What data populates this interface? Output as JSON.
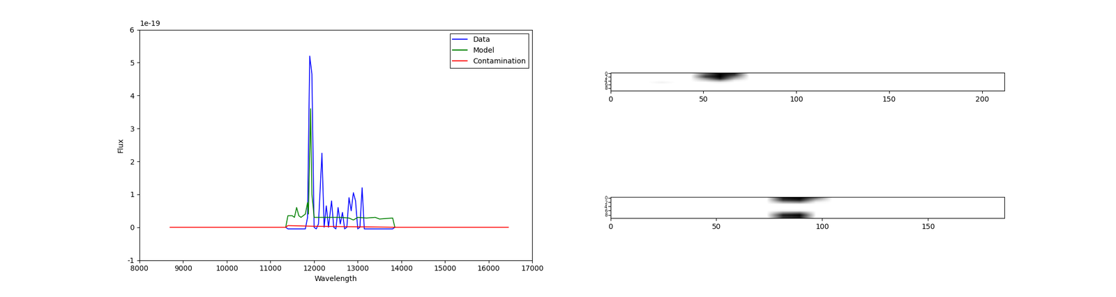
{
  "chart_data": [
    {
      "type": "line",
      "x_label": "Wavelength",
      "y_label": "Flux",
      "annotations": [
        {
          "text": "1e-19"
        }
      ],
      "xlim": [
        8000,
        17000
      ],
      "xticks": [
        8000,
        9000,
        10000,
        11000,
        12000,
        13000,
        14000,
        15000,
        16000,
        17000
      ],
      "ylim": [
        -1,
        6
      ],
      "yticks": [
        -1,
        0,
        1,
        2,
        3,
        4,
        5,
        6
      ],
      "legend": "upper right",
      "series": [
        {
          "name": "Data",
          "color": "#0000ff",
          "x": [
            11350,
            11400,
            11500,
            11600,
            11700,
            11800,
            11850,
            11900,
            11950,
            12000,
            12050,
            12100,
            12180,
            12230,
            12280,
            12330,
            12400,
            12450,
            12500,
            12550,
            12600,
            12650,
            12700,
            12750,
            12800,
            12850,
            12900,
            12950,
            13000,
            13050,
            13100,
            13150,
            13200,
            13400,
            13600,
            13800,
            13850
          ],
          "values": [
            0,
            -0.05,
            -0.05,
            -0.05,
            -0.05,
            -0.05,
            0.3,
            5.2,
            4.65,
            0,
            -0.05,
            0.1,
            2.25,
            0,
            0.65,
            0,
            0.8,
            0,
            -0.05,
            0.6,
            0.1,
            0.45,
            -0.05,
            0,
            0.9,
            0.5,
            1.05,
            0.8,
            -0.05,
            0,
            1.2,
            -0.05,
            -0.05,
            -0.05,
            -0.05,
            -0.05,
            0
          ]
        },
        {
          "name": "Model",
          "color": "#008000",
          "x": [
            11350,
            11400,
            11500,
            11550,
            11600,
            11650,
            11700,
            11800,
            11850,
            11870,
            11920,
            11950,
            11980,
            12000,
            12200,
            12400,
            12600,
            12800,
            12900,
            13000,
            13200,
            13400,
            13500,
            13600,
            13800,
            13850
          ],
          "values": [
            0,
            0.35,
            0.35,
            0.3,
            0.6,
            0.35,
            0.3,
            0.4,
            0.75,
            0.4,
            3.6,
            1.0,
            0.6,
            0.3,
            0.3,
            0.3,
            0.3,
            0.28,
            0.22,
            0.3,
            0.28,
            0.3,
            0.25,
            0.26,
            0.28,
            0
          ]
        },
        {
          "name": "Contamination",
          "color": "#ff0000",
          "x": [
            8700,
            11350,
            11400,
            12000,
            13850,
            16450
          ],
          "values": [
            0,
            0,
            0.05,
            0.03,
            0,
            0
          ]
        }
      ]
    },
    {
      "type": "image",
      "xlim": [
        0,
        212
      ],
      "xticks": [
        0,
        50,
        100,
        150,
        200
      ],
      "ylim": [
        9.5,
        -0.5
      ],
      "yticks": [
        0,
        2,
        4,
        6,
        8
      ],
      "cells": [
        [
          0.15,
          0.15,
          0.15,
          0.15,
          0.15,
          0.15,
          0.6,
          1.0,
          0.9,
          0.15,
          0.15,
          0.15,
          0.15,
          0.15,
          0.15,
          0.15,
          0.15,
          0.15,
          0.15,
          0.15,
          0.15,
          0.15,
          0.15,
          0.15,
          0.15,
          0.15,
          0.15
        ],
        [
          0.15,
          0.15,
          0.15,
          0.15,
          0.15,
          0.15,
          0.7,
          1.0,
          0.8,
          0.15,
          0.15,
          0.15,
          0.15,
          0.15,
          0.15,
          0.15,
          0.15,
          0.15,
          0.15,
          0.15,
          0.15,
          0.15,
          0.15,
          0.15,
          0.15,
          0.15,
          0.15
        ],
        [
          0.15,
          0.15,
          0.15,
          0.15,
          0.15,
          0.15,
          0.8,
          1.0,
          0.6,
          0.15,
          0.15,
          0.15,
          0.15,
          0.15,
          0.15,
          0.15,
          0.15,
          0.15,
          0.15,
          0.15,
          0.15,
          0.15,
          0.15,
          0.15,
          0.15,
          0.15,
          0.15
        ],
        [
          0.15,
          0.15,
          0.15,
          0.15,
          0.15,
          0.15,
          0.5,
          0.9,
          0.4,
          0.15,
          0.15,
          0.15,
          0.15,
          0.15,
          0.15,
          0.15,
          0.15,
          0.15,
          0.15,
          0.15,
          0.15,
          0.15,
          0.15,
          0.15,
          0.15,
          0.15,
          0.15
        ],
        [
          0.15,
          0.15,
          0.15,
          0.15,
          0.15,
          0.15,
          0.3,
          0.5,
          0.2,
          0.15,
          0.15,
          0.15,
          0.15,
          0.15,
          0.15,
          0.15,
          0.15,
          0.15,
          0.15,
          0.15,
          0.15,
          0.15,
          0.15,
          0.15,
          0.15,
          0.15,
          0.15
        ],
        [
          0.15,
          0.15,
          0.15,
          0.2,
          0.15,
          0.15,
          0.15,
          0.2,
          0.15,
          0.15,
          0.15,
          0.15,
          0.15,
          0.15,
          0.15,
          0.15,
          0.15,
          0.15,
          0.15,
          0.15,
          0.15,
          0.15,
          0.15,
          0.15,
          0.15,
          0.15,
          0.15
        ],
        [
          0.15,
          0.15,
          0.15,
          0.15,
          0.15,
          0.15,
          0.15,
          0.15,
          0.15,
          0.15,
          0.15,
          0.15,
          0.15,
          0.15,
          0.15,
          0.15,
          0.15,
          0.15,
          0.15,
          0.15,
          0.15,
          0.15,
          0.15,
          0.15,
          0.15,
          0.15,
          0.15
        ],
        [
          0.15,
          0.15,
          0.15,
          0.15,
          0.15,
          0.15,
          0.15,
          0.15,
          0.15,
          0.15,
          0.15,
          0.15,
          0.15,
          0.15,
          0.15,
          0.15,
          0.15,
          0.15,
          0.15,
          0.15,
          0.15,
          0.15,
          0.15,
          0.15,
          0.15,
          0.15,
          0.15
        ],
        [
          0.15,
          0.15,
          0.15,
          0.15,
          0.15,
          0.15,
          0.15,
          0.15,
          0.15,
          0.15,
          0.15,
          0.15,
          0.15,
          0.15,
          0.15,
          0.15,
          0.15,
          0.15,
          0.15,
          0.15,
          0.15,
          0.15,
          0.15,
          0.15,
          0.15,
          0.15,
          0.15
        ],
        [
          0.15,
          0.15,
          0.15,
          0.15,
          0.15,
          0.15,
          0.15,
          0.15,
          0.15,
          0.15,
          0.15,
          0.15,
          0.15,
          0.15,
          0.15,
          0.15,
          0.15,
          0.15,
          0.15,
          0.15,
          0.15,
          0.15,
          0.15,
          0.15,
          0.15,
          0.15,
          0.15
        ]
      ]
    },
    {
      "type": "image",
      "xlim": [
        0,
        186
      ],
      "xticks": [
        0,
        50,
        100,
        150
      ],
      "ylim": [
        9.5,
        -0.5
      ],
      "yticks": [
        0,
        2,
        4,
        6,
        8
      ],
      "cells": [
        [
          0.06,
          0.06,
          0.06,
          0.06,
          0.06,
          0.06,
          0.06,
          0.06,
          0.06,
          0.06,
          0.9,
          1.0,
          0.6,
          0.06,
          0.06,
          0.06,
          0.06,
          0.06,
          0.06,
          0.06,
          0.06,
          0.06,
          0.06,
          0.06
        ],
        [
          0.06,
          0.06,
          0.06,
          0.06,
          0.06,
          0.06,
          0.06,
          0.06,
          0.06,
          0.06,
          0.8,
          0.9,
          0.3,
          0.06,
          0.06,
          0.06,
          0.06,
          0.06,
          0.06,
          0.06,
          0.06,
          0.06,
          0.06,
          0.06
        ],
        [
          0.06,
          0.06,
          0.06,
          0.06,
          0.06,
          0.06,
          0.06,
          0.06,
          0.06,
          0.06,
          0.4,
          0.5,
          0.1,
          0.06,
          0.06,
          0.06,
          0.06,
          0.06,
          0.06,
          0.06,
          0.06,
          0.06,
          0.06,
          0.06
        ],
        [
          0.06,
          0.06,
          0.06,
          0.06,
          0.06,
          0.06,
          0.06,
          0.06,
          0.06,
          0.06,
          0.06,
          0.06,
          0.06,
          0.06,
          0.06,
          0.06,
          0.06,
          0.06,
          0.06,
          0.06,
          0.06,
          0.06,
          0.06,
          0.06
        ],
        [
          0.06,
          0.06,
          0.06,
          0.06,
          0.06,
          0.06,
          0.06,
          0.06,
          0.06,
          0.06,
          0.06,
          0.06,
          0.06,
          0.06,
          0.06,
          0.06,
          0.06,
          0.06,
          0.06,
          0.06,
          0.06,
          0.06,
          0.06,
          0.06
        ],
        [
          0.06,
          0.06,
          0.06,
          0.06,
          0.06,
          0.06,
          0.06,
          0.06,
          0.06,
          0.06,
          0.06,
          0.06,
          0.06,
          0.06,
          0.06,
          0.06,
          0.06,
          0.06,
          0.06,
          0.06,
          0.06,
          0.06,
          0.06,
          0.06
        ],
        [
          0.06,
          0.06,
          0.06,
          0.06,
          0.06,
          0.06,
          0.06,
          0.06,
          0.06,
          0.06,
          0.1,
          0.1,
          0.06,
          0.06,
          0.06,
          0.06,
          0.06,
          0.06,
          0.06,
          0.06,
          0.06,
          0.06,
          0.06,
          0.06
        ],
        [
          0.06,
          0.06,
          0.06,
          0.06,
          0.06,
          0.06,
          0.06,
          0.06,
          0.06,
          0.06,
          0.5,
          0.6,
          0.06,
          0.06,
          0.06,
          0.06,
          0.06,
          0.06,
          0.06,
          0.06,
          0.06,
          0.06,
          0.06,
          0.06
        ],
        [
          0.06,
          0.06,
          0.06,
          0.06,
          0.06,
          0.06,
          0.06,
          0.06,
          0.06,
          0.06,
          0.9,
          1.0,
          0.06,
          0.06,
          0.06,
          0.06,
          0.06,
          0.06,
          0.06,
          0.06,
          0.06,
          0.06,
          0.06,
          0.06
        ],
        [
          0.06,
          0.06,
          0.06,
          0.06,
          0.06,
          0.06,
          0.06,
          0.06,
          0.06,
          0.06,
          0.8,
          0.9,
          0.06,
          0.06,
          0.06,
          0.06,
          0.06,
          0.06,
          0.06,
          0.06,
          0.06,
          0.06,
          0.06,
          0.06
        ]
      ]
    }
  ]
}
